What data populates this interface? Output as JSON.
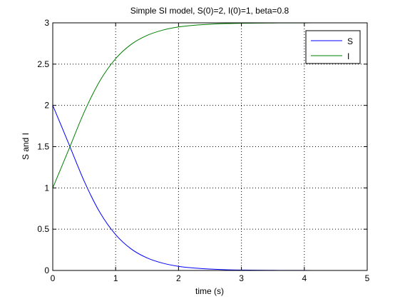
{
  "chart_data": {
    "type": "line",
    "title": "Simple SI model, S(0)=2, I(0)=1, beta=0.8",
    "xlabel": "time (s)",
    "ylabel": "S and I",
    "xlim": [
      0,
      5
    ],
    "ylim": [
      0,
      3
    ],
    "xticks": [
      0,
      1,
      2,
      3,
      4,
      5
    ],
    "yticks": [
      0,
      0.5,
      1,
      1.5,
      2,
      2.5,
      3
    ],
    "xtick_labels": [
      "0",
      "1",
      "2",
      "3",
      "4",
      "5"
    ],
    "ytick_labels": [
      "0",
      "0.5",
      "1",
      "1.5",
      "2",
      "2.5",
      "3"
    ],
    "grid": true,
    "legend_position": "top-right",
    "x": [
      0,
      0.25,
      0.5,
      0.75,
      1,
      1.25,
      1.5,
      1.75,
      2,
      2.25,
      2.5,
      2.75,
      3,
      3.25,
      3.5,
      3.75,
      4,
      4.25,
      4.5,
      4.75,
      5
    ],
    "series": [
      {
        "name": "S",
        "color": "#0000ff",
        "values": [
          2.0,
          1.543,
          1.081,
          0.702,
          0.434,
          0.259,
          0.152,
          0.088,
          0.05,
          0.029,
          0.017,
          0.009,
          0.005,
          0.003,
          0.002,
          0.001,
          0.001,
          0.0,
          0.0,
          0.0,
          0.0
        ]
      },
      {
        "name": "I",
        "color": "#007f00",
        "values": [
          1.0,
          1.457,
          1.919,
          2.298,
          2.566,
          2.741,
          2.848,
          2.912,
          2.95,
          2.971,
          2.983,
          2.991,
          2.995,
          2.997,
          2.998,
          2.999,
          2.999,
          3.0,
          3.0,
          3.0,
          3.0
        ]
      }
    ]
  }
}
